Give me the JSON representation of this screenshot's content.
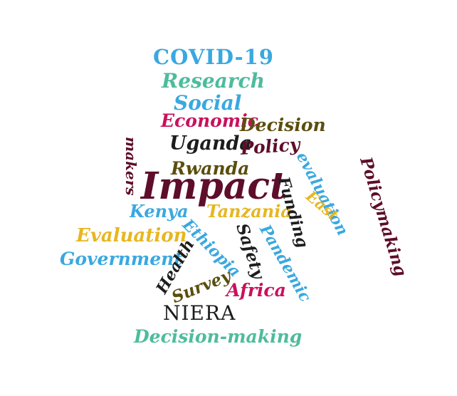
{
  "colors": {
    "blue": "#3aa8e0",
    "teal": "#4dbc9c",
    "magenta": "#c8115e",
    "olive": "#5b4e0e",
    "dark": "#1d1d1d",
    "maroon": "#5e0d2a",
    "gold": "#e7b621"
  },
  "words": [
    "COVID-19",
    "Research",
    "Social",
    "Economic",
    "Decision",
    "Uganda",
    "Policy",
    "Rwanda",
    "makers",
    "evaluation",
    "Policymaking",
    "Impact",
    "Funding",
    "East",
    "Kenya",
    "Tanzania",
    "Ethiopia",
    "Safety",
    "Pandemic",
    "Evaluation",
    "Health",
    "Government",
    "Survey",
    "Africa",
    "NIERA",
    "Decision-making"
  ]
}
